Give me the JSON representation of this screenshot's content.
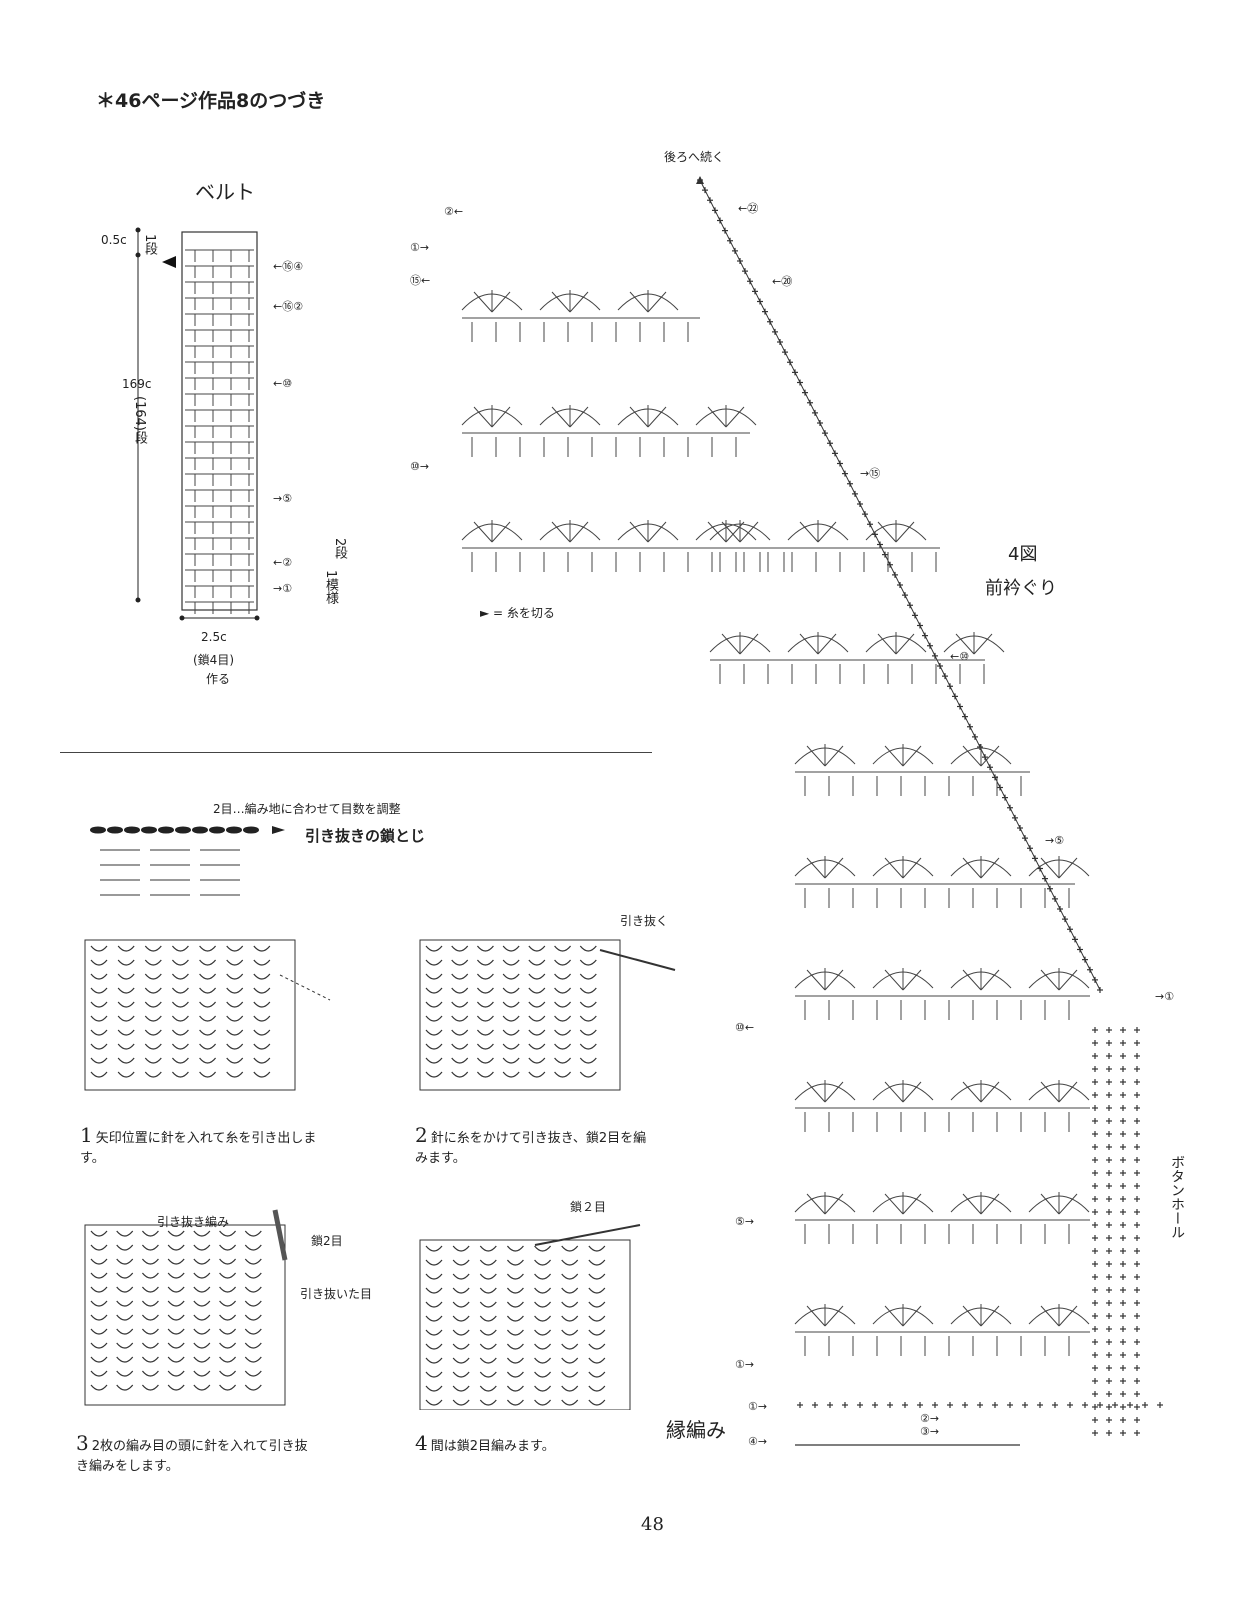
{
  "page": {
    "heading": "＊46ページ作品8のつづき",
    "page_number": "48"
  },
  "belt": {
    "title": "ベルト",
    "dim_top": "0.5c",
    "dim_top_rows": "1段",
    "dim_length": "169c",
    "dim_rows": "(164)段",
    "dim_width": "2.5c",
    "dim_chain": "(鎖4目)",
    "dim_make": "作る",
    "pattern_note_a": "2段",
    "pattern_note_b": "1模様",
    "row_labels": [
      "←⑯④",
      "←⑯②",
      "←⑩",
      "→⑤",
      "←②",
      "→①"
    ]
  },
  "legend": {
    "cut_yarn": "► = 糸を切る"
  },
  "figure4": {
    "title": "4図",
    "subtitle": "前衿ぐり",
    "continue_back": "後ろへ続く",
    "edge_label": "縁編み",
    "buttonhole_label": "ボタンホール",
    "neck_row_labels": [
      "②←",
      "①→",
      "⑮←",
      "⑩→"
    ],
    "slope_row_labels": [
      "←㉒",
      "←⑳",
      "→⑮",
      "←⑩",
      "→⑤"
    ],
    "front_row_labels": [
      "⑩←",
      "⑤→",
      "①→"
    ],
    "edge_row_labels": [
      "①→",
      "②→",
      "③→",
      "④→"
    ],
    "band_row_label": "→①"
  },
  "seam": {
    "note": "2目…編み地に合わせて目数を調整",
    "title": "引き抜きの鎖とじ"
  },
  "steps": [
    {
      "num": "1",
      "text": "矢印位置に針を入れて糸を引き出します。"
    },
    {
      "num": "2",
      "text": "針に糸をかけて引き抜き、鎖2目を編みます。"
    },
    {
      "num": "3",
      "text": "2枚の編み目の頭に針を入れて引き抜き編みをします。"
    },
    {
      "num": "4",
      "text": "間は鎖2目編みます。"
    }
  ],
  "illustrations": {
    "step2_callout": "引き抜く",
    "step3_callout_a": "引き抜き編み",
    "step3_callout_b": "鎖2目",
    "step3_callout_c": "引き抜いた目",
    "step4_callout": "鎖２目"
  }
}
